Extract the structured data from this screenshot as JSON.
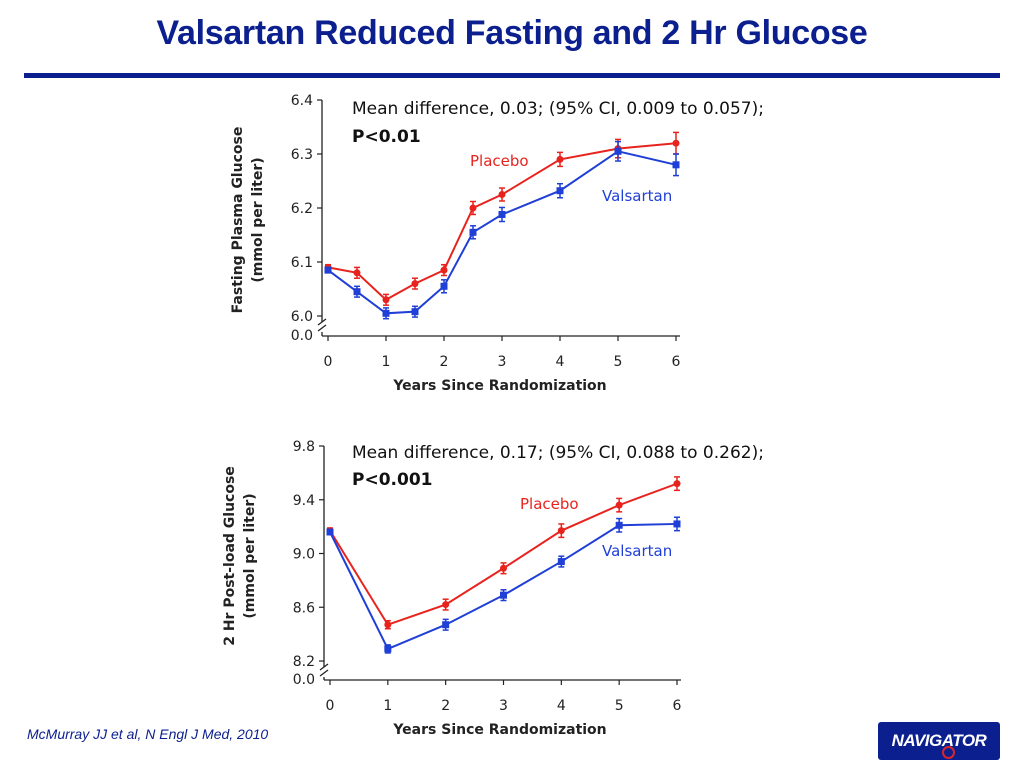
{
  "slide": {
    "title": "Valsartan Reduced Fasting and 2 Hr Glucose",
    "citation": "McMurray JJ et al, N Engl J Med, 2010",
    "logo_text": "NAVIGATOR",
    "colors": {
      "title": "#0b1f8f",
      "placebo": "#e8231e",
      "valsartan": "#1f3fd6"
    }
  },
  "chart_data": [
    {
      "type": "line",
      "xlabel": "Years Since Randomization",
      "ylabel": "Fasting Plasma Glucose",
      "ylabel_unit": "(mmol per liter)",
      "annotation": "Mean difference, 0.03; (95% CI, 0.009 to 0.057);",
      "annotation_p": "P<0.01",
      "x_ticks": [
        "0",
        "1",
        "2",
        "3",
        "4",
        "5",
        "6"
      ],
      "y_ticks": [
        "6.0",
        "6.1",
        "6.2",
        "6.3",
        "6.4"
      ],
      "y_break_label": "0.0",
      "xlim": [
        0,
        6
      ],
      "ylim": [
        6.0,
        6.4
      ],
      "series": [
        {
          "name": "Placebo",
          "color": "#e8231e",
          "marker": "circle",
          "x": [
            0,
            0.5,
            1,
            1.5,
            2,
            2.5,
            3,
            4,
            5,
            6
          ],
          "y": [
            6.09,
            6.08,
            6.03,
            6.06,
            6.085,
            6.2,
            6.225,
            6.29,
            6.31,
            6.32
          ],
          "err": [
            0.005,
            0.01,
            0.01,
            0.01,
            0.01,
            0.012,
            0.012,
            0.013,
            0.017,
            0.02
          ]
        },
        {
          "name": "Valsartan",
          "color": "#1f3fd6",
          "marker": "square",
          "x": [
            0,
            0.5,
            1,
            1.5,
            2,
            2.5,
            3,
            4,
            5,
            6
          ],
          "y": [
            6.085,
            6.045,
            6.005,
            6.008,
            6.055,
            6.155,
            6.188,
            6.232,
            6.305,
            6.28
          ],
          "err": [
            0.005,
            0.01,
            0.01,
            0.01,
            0.012,
            0.012,
            0.013,
            0.013,
            0.018,
            0.02
          ]
        }
      ]
    },
    {
      "type": "line",
      "xlabel": "Years Since Randomization",
      "ylabel": "2 Hr Post-load Glucose",
      "ylabel_unit": "(mmol per liter)",
      "annotation": "Mean difference, 0.17; (95% CI, 0.088 to 0.262);",
      "annotation_p": "P<0.001",
      "x_ticks": [
        "0",
        "1",
        "2",
        "3",
        "4",
        "5",
        "6"
      ],
      "y_ticks": [
        "8.2",
        "8.6",
        "9.0",
        "9.4",
        "9.8"
      ],
      "y_break_label": "0.0",
      "xlim": [
        0,
        6
      ],
      "ylim": [
        8.2,
        9.8
      ],
      "series": [
        {
          "name": "Placebo",
          "color": "#e8231e",
          "marker": "circle",
          "x": [
            0,
            1,
            2,
            3,
            4,
            5,
            6
          ],
          "y": [
            9.17,
            8.47,
            8.62,
            8.89,
            9.17,
            9.36,
            9.52
          ],
          "err": [
            0.02,
            0.03,
            0.04,
            0.04,
            0.05,
            0.05,
            0.05
          ]
        },
        {
          "name": "Valsartan",
          "color": "#1f3fd6",
          "marker": "square",
          "x": [
            0,
            1,
            2,
            3,
            4,
            5,
            6
          ],
          "y": [
            9.16,
            8.29,
            8.47,
            8.69,
            8.94,
            9.21,
            9.22
          ],
          "err": [
            0.02,
            0.03,
            0.04,
            0.04,
            0.04,
            0.05,
            0.05
          ]
        }
      ]
    }
  ]
}
